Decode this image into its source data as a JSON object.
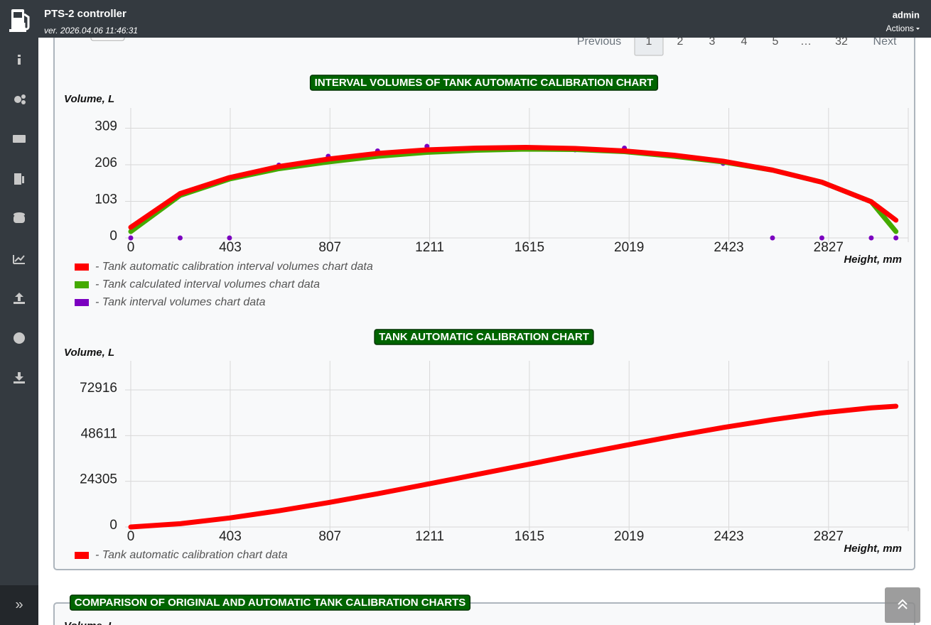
{
  "header": {
    "title": "PTS-2 controller",
    "version": "ver. 2026.04.06 11:46:31",
    "user": "admin",
    "menu": "Actions"
  },
  "sidebar": {
    "toggle": "»"
  },
  "pagination": {
    "previous": "Previous",
    "pages": [
      "1",
      "2",
      "3",
      "4",
      "5",
      "…",
      "32"
    ],
    "next": "Next",
    "active": 0
  },
  "chart_data": [
    {
      "type": "line",
      "title": "INTERVAL VOLUMES OF TANK AUTOMATIC CALIBRATION CHART",
      "y_label": "Volume, L",
      "x_label": "Height, mm",
      "x": [
        0,
        200,
        400,
        600,
        800,
        1000,
        1200,
        1400,
        1600,
        1800,
        2000,
        2200,
        2400,
        2600,
        2800,
        3000,
        3100
      ],
      "xlim": [
        0,
        3150
      ],
      "xticks": [
        0,
        403,
        807,
        1211,
        1615,
        2019,
        2423,
        2827
      ],
      "ylim": [
        0,
        366
      ],
      "yticks": [
        0,
        103,
        206,
        309
      ],
      "grid": true,
      "series": [
        {
          "name": "- Tank automatic calibration interval volumes chart data",
          "color": "#ff0000",
          "style": "line",
          "values": [
            30,
            125,
            170,
            201,
            222,
            238,
            248,
            253,
            255,
            252,
            245,
            233,
            216,
            191,
            157,
            102,
            50
          ]
        },
        {
          "name": "- Tank calculated interval volumes chart data",
          "color": "#44aa00",
          "style": "line",
          "values": [
            18,
            120,
            166,
            195,
            214,
            230,
            241,
            247,
            250,
            249,
            243,
            230,
            214,
            191,
            157,
            102,
            18
          ]
        },
        {
          "name": "- Tank interval volumes chart data",
          "color": "#7b00c0",
          "style": "dots",
          "values": [
            0,
            0,
            0,
            205,
            230,
            245,
            258,
            250,
            252,
            248,
            253,
            230,
            210,
            0,
            0,
            0,
            0
          ]
        }
      ]
    },
    {
      "type": "line",
      "title": "TANK AUTOMATIC CALIBRATION CHART",
      "y_label": "Volume, L",
      "x_label": "Height, mm",
      "x": [
        0,
        200,
        400,
        600,
        800,
        1000,
        1200,
        1400,
        1600,
        1800,
        2000,
        2200,
        2400,
        2600,
        2800,
        3000,
        3100
      ],
      "xlim": [
        0,
        3150
      ],
      "xticks": [
        0,
        403,
        807,
        1211,
        1615,
        2019,
        2423,
        2827
      ],
      "ylim": [
        0,
        88400
      ],
      "yticks": [
        0,
        24305,
        48611,
        72916
      ],
      "grid": true,
      "series": [
        {
          "name": "- Tank automatic calibration chart data",
          "color": "#ff0000",
          "style": "line",
          "values": [
            0,
            1740,
            4800,
            8610,
            12970,
            17700,
            22720,
            27870,
            33050,
            38260,
            43340,
            48290,
            52910,
            57080,
            60690,
            63380,
            64210
          ]
        }
      ]
    }
  ],
  "comparison": {
    "title": "COMPARISON OF ORIGINAL AND AUTOMATIC TANK CALIBRATION CHARTS",
    "y_label": "Volume, L"
  }
}
